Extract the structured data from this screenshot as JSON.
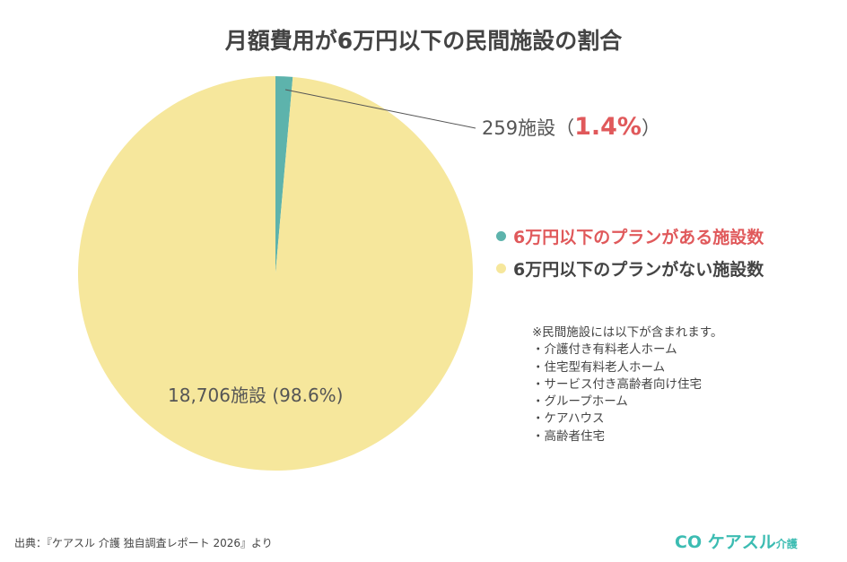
{
  "chart_data": {
    "type": "pie",
    "title": "月額費用が6万円以下の民間施設の割合",
    "slices": [
      {
        "name": "6万円以下のプランがある施設数",
        "count": 259,
        "percent": 1.4,
        "label": "259施設",
        "pct_label": "1.4%",
        "color": "#5db3ac"
      },
      {
        "name": "6万円以下のプランがない施設数",
        "count": 18706,
        "percent": 98.6,
        "label": "18,706施設 (98.6%)",
        "color": "#f6e79c"
      }
    ],
    "legend_placement": "right"
  },
  "legend_colors": {
    "first": "#e0595b",
    "second": "#444444"
  },
  "note": {
    "heading": "※民間施設には以下が含まれます。",
    "items": [
      "・介護付き有料老人ホーム",
      "・住宅型有料老人ホーム",
      "・サービス付き高齢者向け住宅",
      "・グループホーム",
      "・ケアハウス",
      "・高齢者住宅"
    ]
  },
  "source": "出典：『ケアスル 介護 独自調査レポート 2026』より",
  "logo": {
    "main": "ケアスル",
    "sub": "介護",
    "mark": "CO"
  }
}
